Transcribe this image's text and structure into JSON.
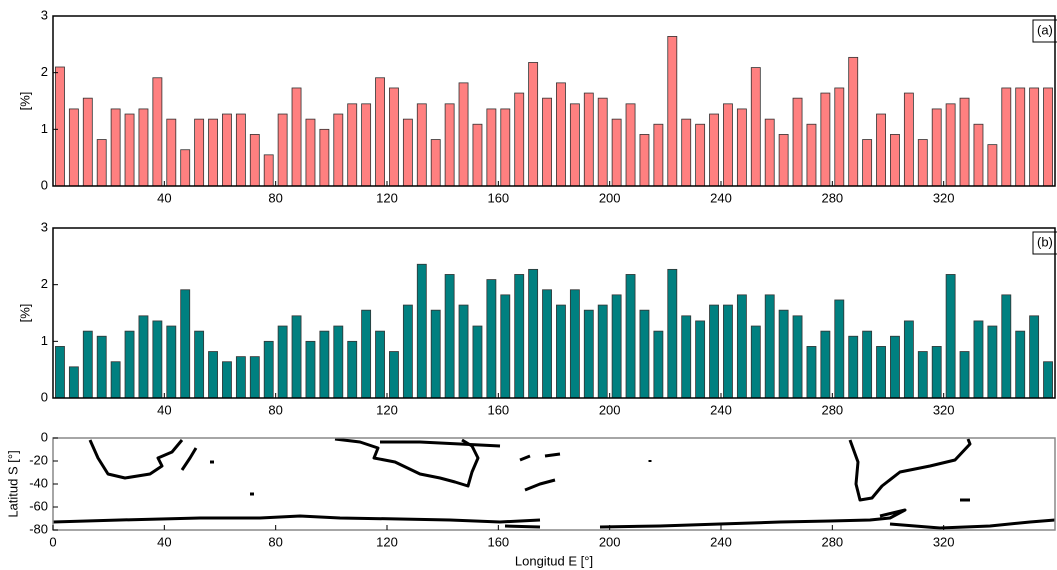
{
  "chart_data": [
    {
      "type": "bar",
      "ylabel": "[%]",
      "panel_label": "(a)",
      "color": "#ff8080",
      "x": [
        2.5,
        7.5,
        12.5,
        17.5,
        22.5,
        27.5,
        32.5,
        37.5,
        42.5,
        47.5,
        52.5,
        57.5,
        62.5,
        67.5,
        72.5,
        77.5,
        82.5,
        87.5,
        92.5,
        97.5,
        102.5,
        107.5,
        112.5,
        117.5,
        122.5,
        127.5,
        132.5,
        137.5,
        142.5,
        147.5,
        152.5,
        157.5,
        162.5,
        167.5,
        172.5,
        177.5,
        182.5,
        187.5,
        192.5,
        197.5,
        202.5,
        207.5,
        212.5,
        217.5,
        222.5,
        227.5,
        232.5,
        237.5,
        242.5,
        247.5,
        252.5,
        257.5,
        262.5,
        267.5,
        272.5,
        277.5,
        282.5,
        287.5,
        292.5,
        297.5,
        302.5,
        307.5,
        312.5,
        317.5,
        322.5,
        327.5,
        332.5,
        337.5,
        342.5,
        347.5,
        352.5,
        357.5
      ],
      "values": [
        2.1,
        1.36,
        1.55,
        0.82,
        1.36,
        1.27,
        1.36,
        1.91,
        1.18,
        0.64,
        1.18,
        1.18,
        1.27,
        1.27,
        0.91,
        0.55,
        1.27,
        1.73,
        1.18,
        1.0,
        1.27,
        1.45,
        1.45,
        1.91,
        1.73,
        1.18,
        1.45,
        0.82,
        1.45,
        1.82,
        1.09,
        1.36,
        1.36,
        1.64,
        2.18,
        1.55,
        1.82,
        1.45,
        1.64,
        1.55,
        1.18,
        1.45,
        0.91,
        1.09,
        2.64,
        1.18,
        1.09,
        1.27,
        1.45,
        1.36,
        2.09,
        1.18,
        0.91,
        1.55,
        1.09,
        1.64,
        1.73,
        2.27,
        0.82,
        1.27,
        0.91,
        1.64,
        0.82,
        1.36,
        1.45,
        1.55,
        1.09,
        0.73,
        1.73,
        1.73,
        1.73,
        1.73
      ],
      "xlim": [
        0,
        360
      ],
      "xticks": [
        40,
        80,
        120,
        160,
        200,
        240,
        280,
        320
      ],
      "ylim": [
        0,
        3
      ],
      "yticks": [
        0,
        1,
        2,
        3
      ]
    },
    {
      "type": "bar",
      "ylabel": "[%]",
      "panel_label": "(b)",
      "color": "#008080",
      "x": [
        2.5,
        7.5,
        12.5,
        17.5,
        22.5,
        27.5,
        32.5,
        37.5,
        42.5,
        47.5,
        52.5,
        57.5,
        62.5,
        67.5,
        72.5,
        77.5,
        82.5,
        87.5,
        92.5,
        97.5,
        102.5,
        107.5,
        112.5,
        117.5,
        122.5,
        127.5,
        132.5,
        137.5,
        142.5,
        147.5,
        152.5,
        157.5,
        162.5,
        167.5,
        172.5,
        177.5,
        182.5,
        187.5,
        192.5,
        197.5,
        202.5,
        207.5,
        212.5,
        217.5,
        222.5,
        227.5,
        232.5,
        237.5,
        242.5,
        247.5,
        252.5,
        257.5,
        262.5,
        267.5,
        272.5,
        277.5,
        282.5,
        287.5,
        292.5,
        297.5,
        302.5,
        307.5,
        312.5,
        317.5,
        322.5,
        327.5,
        332.5,
        337.5,
        342.5,
        347.5,
        352.5,
        357.5
      ],
      "values": [
        0.91,
        0.55,
        1.18,
        1.09,
        0.64,
        1.18,
        1.45,
        1.36,
        1.27,
        1.91,
        1.18,
        0.82,
        0.64,
        0.73,
        0.73,
        1.0,
        1.27,
        1.45,
        1.0,
        1.18,
        1.27,
        1.0,
        1.55,
        1.18,
        0.82,
        1.64,
        2.36,
        1.55,
        2.18,
        1.64,
        1.27,
        2.09,
        1.82,
        2.18,
        2.27,
        1.91,
        1.64,
        1.91,
        1.55,
        1.64,
        1.82,
        2.18,
        1.55,
        1.18,
        2.27,
        1.45,
        1.36,
        1.64,
        1.64,
        1.82,
        1.27,
        1.82,
        1.55,
        1.45,
        0.91,
        1.18,
        1.73,
        1.09,
        1.18,
        0.91,
        1.09,
        1.36,
        0.82,
        0.91,
        2.18,
        0.82,
        1.36,
        1.27,
        1.82,
        1.18,
        1.45,
        0.64
      ],
      "xlim": [
        0,
        360
      ],
      "xticks": [
        40,
        80,
        120,
        160,
        200,
        240,
        280,
        320
      ],
      "ylim": [
        0,
        3
      ],
      "yticks": [
        0,
        1,
        2,
        3
      ]
    },
    {
      "type": "map",
      "xlabel": "Longitud E [°]",
      "ylabel": "Latitud S [°]",
      "xlim": [
        0,
        360
      ],
      "xticks": [
        0,
        40,
        80,
        120,
        160,
        200,
        240,
        280,
        320
      ],
      "ylim": [
        -80,
        0
      ],
      "yticks": [
        0,
        -20,
        -40,
        -60,
        -80
      ]
    }
  ]
}
